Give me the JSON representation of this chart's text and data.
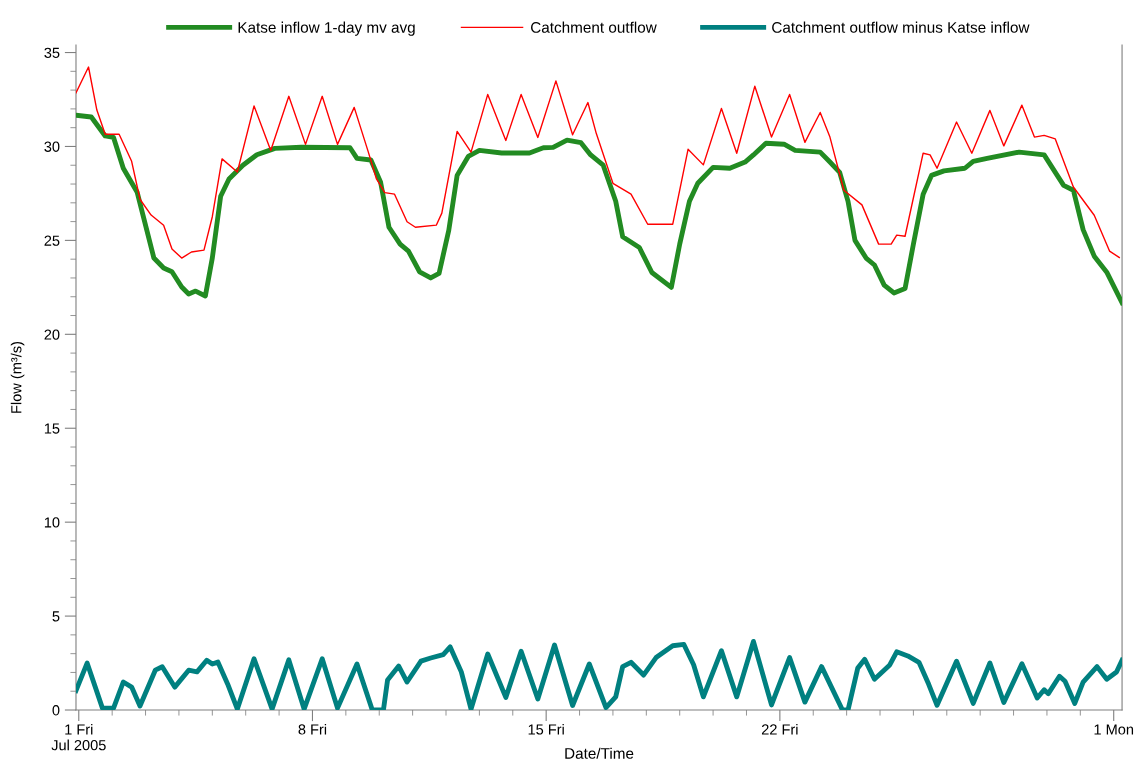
{
  "chart_data": {
    "type": "line",
    "xlabel": "Date/Time",
    "ylabel": "Flow (m³/s)",
    "xlim": [
      "2005-06-30T22:00",
      "2005-08-01T06:00"
    ],
    "ylim": [
      0,
      35.4
    ],
    "xticks": [
      {
        "value": "2005-07-01",
        "label": "1 Fri\nJul 2005"
      },
      {
        "value": "2005-07-02",
        "label": null
      },
      {
        "value": "2005-07-03",
        "label": null
      },
      {
        "value": "2005-07-04",
        "label": null
      },
      {
        "value": "2005-07-05",
        "label": null
      },
      {
        "value": "2005-07-06",
        "label": null
      },
      {
        "value": "2005-07-07",
        "label": null
      },
      {
        "value": "2005-07-08",
        "label": "8 Fri"
      },
      {
        "value": "2005-07-09",
        "label": null
      },
      {
        "value": "2005-07-10",
        "label": null
      },
      {
        "value": "2005-07-11",
        "label": null
      },
      {
        "value": "2005-07-12",
        "label": null
      },
      {
        "value": "2005-07-13",
        "label": null
      },
      {
        "value": "2005-07-14",
        "label": null
      },
      {
        "value": "2005-07-15",
        "label": "15 Fri"
      },
      {
        "value": "2005-07-16",
        "label": null
      },
      {
        "value": "2005-07-17",
        "label": null
      },
      {
        "value": "2005-07-18",
        "label": null
      },
      {
        "value": "2005-07-19",
        "label": null
      },
      {
        "value": "2005-07-20",
        "label": null
      },
      {
        "value": "2005-07-21",
        "label": null
      },
      {
        "value": "2005-07-22",
        "label": "22 Fri"
      },
      {
        "value": "2005-07-23",
        "label": null
      },
      {
        "value": "2005-07-24",
        "label": null
      },
      {
        "value": "2005-07-25",
        "label": null
      },
      {
        "value": "2005-07-26",
        "label": null
      },
      {
        "value": "2005-07-27",
        "label": null
      },
      {
        "value": "2005-07-28",
        "label": null
      },
      {
        "value": "2005-07-29",
        "label": null
      },
      {
        "value": "2005-07-30",
        "label": null
      },
      {
        "value": "2005-07-31",
        "label": null
      },
      {
        "value": "2005-08-01",
        "label": "1 Mon"
      }
    ],
    "yticks": [
      0,
      {
        "value": 1,
        "label": null
      },
      {
        "value": 2,
        "label": null
      },
      {
        "value": 3,
        "label": null
      },
      {
        "value": 4,
        "label": null
      },
      5,
      {
        "value": 6,
        "label": null
      },
      {
        "value": 7,
        "label": null
      },
      {
        "value": 8,
        "label": null
      },
      {
        "value": 9,
        "label": null
      },
      10,
      {
        "value": 11,
        "label": null
      },
      {
        "value": 12,
        "label": null
      },
      {
        "value": 13,
        "label": null
      },
      {
        "value": 14,
        "label": null
      },
      15,
      {
        "value": 16,
        "label": null
      },
      {
        "value": 17,
        "label": null
      },
      {
        "value": 18,
        "label": null
      },
      {
        "value": 19,
        "label": null
      },
      20,
      {
        "value": 21,
        "label": null
      },
      {
        "value": 22,
        "label": null
      },
      {
        "value": 23,
        "label": null
      },
      {
        "value": 24,
        "label": null
      },
      25,
      {
        "value": 26,
        "label": null
      },
      {
        "value": 27,
        "label": null
      },
      {
        "value": 28,
        "label": null
      },
      {
        "value": 29,
        "label": null
      },
      30,
      {
        "value": 31,
        "label": null
      },
      {
        "value": 32,
        "label": null
      },
      {
        "value": 33,
        "label": null
      },
      {
        "value": 34,
        "label": null
      },
      35
    ],
    "grid": false,
    "legend": "top",
    "marker": "none",
    "line_style": "solid",
    "series": [
      {
        "name": "Katse inflow 1-day mv avg",
        "color": "#228b22",
        "x": [
          "2005-06-30T22:00",
          "2005-07-01T09:00",
          "2005-07-01T19:00",
          "2005-07-02T01:00",
          "2005-07-02T08:00",
          "2005-07-02T18:00",
          "2005-07-03T06:00",
          "2005-07-03T13:00",
          "2005-07-03T19:00",
          "2005-07-04T02:00",
          "2005-07-04T07:00",
          "2005-07-04T12:00",
          "2005-07-04T19:00",
          "2005-07-05T00:00",
          "2005-07-05T06:00",
          "2005-07-05T12:00",
          "2005-07-05T22:00",
          "2005-07-06T08:00",
          "2005-07-06T21:00",
          "2005-07-07T16:00",
          "2005-07-09T03:00",
          "2005-07-09T08:00",
          "2005-07-09T18:00",
          "2005-07-10T01:00",
          "2005-07-10T07:00",
          "2005-07-10T15:00",
          "2005-07-10T21:00",
          "2005-07-11T05:00",
          "2005-07-11T13:00",
          "2005-07-11T19:00",
          "2005-07-12T02:00",
          "2005-07-12T08:00",
          "2005-07-12T16:00",
          "2005-07-13T00:00",
          "2005-07-13T16:00",
          "2005-07-14T12:00",
          "2005-07-14T22:00",
          "2005-07-15T05:00",
          "2005-07-15T15:00",
          "2005-07-16T01:00",
          "2005-07-16T08:00",
          "2005-07-16T17:00",
          "2005-07-17T02:00",
          "2005-07-17T07:00",
          "2005-07-17T19:00",
          "2005-07-18T04:00",
          "2005-07-18T18:00",
          "2005-07-19T00:00",
          "2005-07-19T07:00",
          "2005-07-19T13:00",
          "2005-07-20T00:00",
          "2005-07-20T12:00",
          "2005-07-20T23:00",
          "2005-07-21T05:00",
          "2005-07-21T14:00",
          "2005-07-22T03:00",
          "2005-07-22T11:00",
          "2005-07-23T05:00",
          "2005-07-23T12:00",
          "2005-07-23T19:00",
          "2005-07-24T01:00",
          "2005-07-24T06:00",
          "2005-07-24T14:00",
          "2005-07-24T20:00",
          "2005-07-25T03:00",
          "2005-07-25T10:00",
          "2005-07-25T18:00",
          "2005-07-26T00:00",
          "2005-07-26T07:00",
          "2005-07-26T13:00",
          "2005-07-26T22:00",
          "2005-07-27T13:00",
          "2005-07-27T19:00",
          "2005-07-28T05:00",
          "2005-07-29T04:00",
          "2005-07-29T22:00",
          "2005-07-30T06:00",
          "2005-07-30T12:00",
          "2005-07-30T19:00",
          "2005-07-31T02:00",
          "2005-07-31T10:00",
          "2005-07-31T19:00",
          "2005-08-01T06:00"
        ],
        "values": [
          31.66,
          31.57,
          30.56,
          30.48,
          28.84,
          27.56,
          24.06,
          23.53,
          23.33,
          22.52,
          22.15,
          22.3,
          22.04,
          24.06,
          27.35,
          28.27,
          29.0,
          29.56,
          29.9,
          29.96,
          29.93,
          29.37,
          29.28,
          28.09,
          25.7,
          24.8,
          24.43,
          23.33,
          23.0,
          23.24,
          25.54,
          28.46,
          29.47,
          29.79,
          29.65,
          29.65,
          29.93,
          29.95,
          30.34,
          30.2,
          29.55,
          29.0,
          27.08,
          25.19,
          24.62,
          23.29,
          22.5,
          24.8,
          27.08,
          28.04,
          28.89,
          28.84,
          29.17,
          29.55,
          30.17,
          30.12,
          29.79,
          29.7,
          29.17,
          28.62,
          27.08,
          25.0,
          24.06,
          23.69,
          22.62,
          22.2,
          22.44,
          24.8,
          27.46,
          28.46,
          28.7,
          28.84,
          29.21,
          29.37,
          29.7,
          29.55,
          28.62,
          27.93,
          27.67,
          25.57,
          24.16,
          23.31,
          21.68
        ]
      },
      {
        "name": "Catchment outflow",
        "color": "#ff0000",
        "x": [
          "2005-06-30T22:00",
          "2005-07-01T07:00",
          "2005-07-01T13:00",
          "2005-07-01T19:00",
          "2005-07-02T05:00",
          "2005-07-02T14:00",
          "2005-07-02T20:00",
          "2005-07-03T04:00",
          "2005-07-03T13:00",
          "2005-07-03T19:00",
          "2005-07-04T02:00",
          "2005-07-04T09:00",
          "2005-07-04T18:00",
          "2005-07-05T00:00",
          "2005-07-05T07:00",
          "2005-07-05T18:00",
          "2005-07-06T06:00",
          "2005-07-06T18:00",
          "2005-07-07T07:00",
          "2005-07-07T19:00",
          "2005-07-08T07:00",
          "2005-07-08T18:00",
          "2005-07-09T06:00",
          "2005-07-09T16:00",
          "2005-07-09T22:00",
          "2005-07-10T04:00",
          "2005-07-10T11:00",
          "2005-07-10T20:00",
          "2005-07-11T02:00",
          "2005-07-11T17:00",
          "2005-07-11T21:00",
          "2005-07-12T08:00",
          "2005-07-12T18:00",
          "2005-07-13T06:00",
          "2005-07-13T19:00",
          "2005-07-14T06:00",
          "2005-07-14T18:00",
          "2005-07-15T07:00",
          "2005-07-15T19:00",
          "2005-07-16T06:00",
          "2005-07-16T12:00",
          "2005-07-17T00:00",
          "2005-07-17T13:00",
          "2005-07-18T01:00",
          "2005-07-18T19:00",
          "2005-07-19T06:00",
          "2005-07-19T17:00",
          "2005-07-20T06:00",
          "2005-07-20T17:00",
          "2005-07-21T06:00",
          "2005-07-21T18:00",
          "2005-07-22T07:00",
          "2005-07-22T18:00",
          "2005-07-23T05:00",
          "2005-07-23T12:00",
          "2005-07-23T22:00",
          "2005-07-24T11:00",
          "2005-07-24T23:00",
          "2005-07-25T08:00",
          "2005-07-25T12:00",
          "2005-07-25T18:00",
          "2005-07-26T07:00",
          "2005-07-26T12:00",
          "2005-07-26T17:00",
          "2005-07-27T07:00",
          "2005-07-27T18:00",
          "2005-07-28T07:00",
          "2005-07-28T17:00",
          "2005-07-29T06:00",
          "2005-07-29T15:00",
          "2005-07-29T22:00",
          "2005-07-30T06:00",
          "2005-07-30T19:00",
          "2005-07-31T10:00",
          "2005-07-31T21:00",
          "2005-08-01T04:00"
        ],
        "values": [
          32.85,
          34.23,
          31.94,
          30.65,
          30.65,
          29.21,
          27.19,
          26.35,
          25.81,
          24.54,
          24.06,
          24.38,
          24.48,
          26.26,
          29.34,
          28.64,
          32.16,
          29.79,
          32.67,
          30.11,
          32.67,
          30.11,
          32.08,
          29.74,
          28.27,
          27.54,
          27.46,
          25.99,
          25.7,
          25.81,
          26.45,
          30.8,
          29.7,
          32.77,
          30.32,
          32.77,
          30.48,
          33.49,
          30.62,
          32.34,
          30.7,
          28.04,
          27.46,
          25.86,
          25.86,
          29.85,
          29.02,
          32.02,
          29.64,
          33.21,
          30.5,
          32.77,
          30.22,
          31.81,
          30.5,
          27.67,
          26.89,
          24.8,
          24.8,
          25.28,
          25.22,
          29.64,
          29.55,
          28.84,
          31.3,
          29.64,
          31.92,
          30.03,
          32.2,
          30.5,
          30.59,
          30.4,
          27.84,
          26.34,
          24.43,
          24.09
        ]
      },
      {
        "name": "Catchment outflow minus Katse inflow",
        "color": "#008080",
        "x": [
          "2005-06-30T22:00",
          "2005-07-01T06:00",
          "2005-07-01T17:00",
          "2005-07-02T01:00",
          "2005-07-02T08:00",
          "2005-07-02T14:00",
          "2005-07-02T20:00",
          "2005-07-03T07:00",
          "2005-07-03T12:00",
          "2005-07-03T21:00",
          "2005-07-04T07:00",
          "2005-07-04T13:00",
          "2005-07-04T20:00",
          "2005-07-05T00:00",
          "2005-07-05T04:00",
          "2005-07-05T11:00",
          "2005-07-05T18:00",
          "2005-07-06T06:00",
          "2005-07-06T19:00",
          "2005-07-07T07:00",
          "2005-07-07T18:00",
          "2005-07-08T07:00",
          "2005-07-08T18:00",
          "2005-07-09T08:00",
          "2005-07-09T19:00",
          "2005-07-10T03:00",
          "2005-07-10T06:00",
          "2005-07-10T14:00",
          "2005-07-10T20:00",
          "2005-07-11T06:00",
          "2005-07-11T13:00",
          "2005-07-11T22:00",
          "2005-07-12T03:00",
          "2005-07-12T11:00",
          "2005-07-12T18:00",
          "2005-07-13T06:00",
          "2005-07-13T19:00",
          "2005-07-14T06:00",
          "2005-07-14T18:00",
          "2005-07-15T06:00",
          "2005-07-15T19:00",
          "2005-07-16T07:00",
          "2005-07-16T19:00",
          "2005-07-17T02:00",
          "2005-07-17T07:00",
          "2005-07-17T13:00",
          "2005-07-17T22:00",
          "2005-07-18T07:00",
          "2005-07-18T19:00",
          "2005-07-19T03:00",
          "2005-07-19T10:00",
          "2005-07-19T17:00",
          "2005-07-20T06:00",
          "2005-07-20T17:00",
          "2005-07-21T05:00",
          "2005-07-21T18:00",
          "2005-07-22T07:00",
          "2005-07-22T18:00",
          "2005-07-23T06:00",
          "2005-07-23T21:00",
          "2005-07-24T01:00",
          "2005-07-24T08:00",
          "2005-07-24T13:00",
          "2005-07-24T20:00",
          "2005-07-25T07:00",
          "2005-07-25T12:00",
          "2005-07-25T20:00",
          "2005-07-26T04:00",
          "2005-07-26T11:00",
          "2005-07-26T17:00",
          "2005-07-27T07:00",
          "2005-07-27T19:00",
          "2005-07-28T07:00",
          "2005-07-28T17:00",
          "2005-07-29T06:00",
          "2005-07-29T17:00",
          "2005-07-29T22:00",
          "2005-07-30T01:00",
          "2005-07-30T09:00",
          "2005-07-30T13:00",
          "2005-07-30T20:00",
          "2005-07-31T02:00",
          "2005-07-31T12:00",
          "2005-07-31T19:00",
          "2005-08-01T02:00",
          "2005-08-01T06:00"
        ],
        "values": [
          1.03,
          2.5,
          0.1,
          0.1,
          1.49,
          1.22,
          0.21,
          2.12,
          2.3,
          1.22,
          2.12,
          2.03,
          2.65,
          2.45,
          2.55,
          1.39,
          0.05,
          2.73,
          0.05,
          2.67,
          0.05,
          2.73,
          0.1,
          2.45,
          0,
          0,
          1.6,
          2.34,
          1.49,
          2.6,
          2.77,
          2.95,
          3.36,
          2.03,
          0.05,
          2.98,
          0.67,
          3.13,
          0.59,
          3.46,
          0.24,
          2.45,
          0.13,
          0.7,
          2.31,
          2.54,
          1.86,
          2.79,
          3.42,
          3.49,
          2.41,
          0.7,
          3.16,
          0.7,
          3.65,
          0.27,
          2.79,
          0.42,
          2.31,
          0,
          0,
          2.23,
          2.7,
          1.64,
          2.4,
          3.1,
          2.88,
          2.54,
          1.37,
          0.25,
          2.6,
          0.35,
          2.5,
          0.4,
          2.46,
          0.64,
          1.08,
          0.87,
          1.8,
          1.53,
          0.35,
          1.48,
          2.31,
          1.64,
          2.02,
          2.65
        ]
      }
    ]
  }
}
